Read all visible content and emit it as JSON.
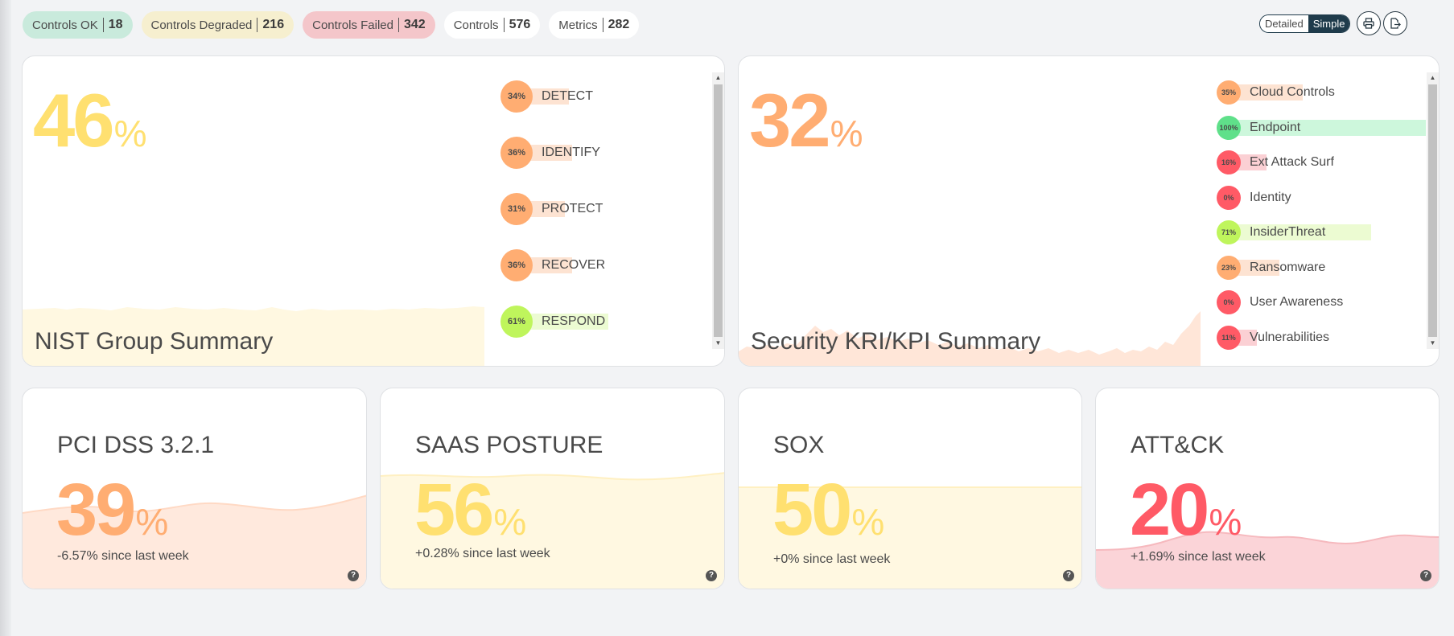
{
  "stats": {
    "ok": {
      "label": "Controls OK",
      "count": "18"
    },
    "degraded": {
      "label": "Controls Degraded",
      "count": "216"
    },
    "failed": {
      "label": "Controls Failed",
      "count": "342"
    },
    "controls": {
      "label": "Controls",
      "count": "576"
    },
    "metrics": {
      "label": "Metrics",
      "count": "282"
    }
  },
  "view_toggle": {
    "detailed": "Detailed",
    "simple": "Simple",
    "active": "Simple"
  },
  "icons": {
    "print": "printer-icon",
    "export": "file-export-icon",
    "help": "help-icon"
  },
  "colors": {
    "ok": "#5fe08a",
    "degraded": "#ffe070",
    "warning": "#ffad72",
    "critical": "#ff5a66",
    "good": "#bff55c"
  },
  "nist": {
    "title": "NIST Group Summary",
    "percent": "46",
    "unit": "%",
    "items": [
      {
        "label": "DETECT",
        "pct": 34,
        "pct_text": "34%"
      },
      {
        "label": "IDENTIFY",
        "pct": 36,
        "pct_text": "36%"
      },
      {
        "label": "PROTECT",
        "pct": 31,
        "pct_text": "31%"
      },
      {
        "label": "RECOVER",
        "pct": 36,
        "pct_text": "36%"
      },
      {
        "label": "RESPOND",
        "pct": 61,
        "pct_text": "61%"
      }
    ]
  },
  "kri": {
    "title": "Security KRI/KPI Summary",
    "percent": "32",
    "unit": "%",
    "items": [
      {
        "label": "Cloud Controls",
        "pct": 35,
        "pct_text": "35%"
      },
      {
        "label": "Endpoint",
        "pct": 100,
        "pct_text": "100%"
      },
      {
        "label": "Ext Attack Surf",
        "pct": 16,
        "pct_text": "16%"
      },
      {
        "label": "Identity",
        "pct": 0,
        "pct_text": "0%"
      },
      {
        "label": "InsiderThreat",
        "pct": 71,
        "pct_text": "71%"
      },
      {
        "label": "Ransomware",
        "pct": 23,
        "pct_text": "23%"
      },
      {
        "label": "User Awareness",
        "pct": 0,
        "pct_text": "0%"
      },
      {
        "label": "Vulnerabilities",
        "pct": 11,
        "pct_text": "11%"
      }
    ]
  },
  "frameworks": [
    {
      "title": "PCI DSS 3.2.1",
      "percent": "39",
      "unit": "%",
      "delta": "-6.57% since last week"
    },
    {
      "title": "SAAS POSTURE",
      "percent": "56",
      "unit": "%",
      "delta": "+0.28% since last week"
    },
    {
      "title": "SOX",
      "percent": "50",
      "unit": "%",
      "delta": "+0% since last week"
    },
    {
      "title": "ATT&CK",
      "percent": "20",
      "unit": "%",
      "delta": "+1.69% since last week"
    }
  ]
}
